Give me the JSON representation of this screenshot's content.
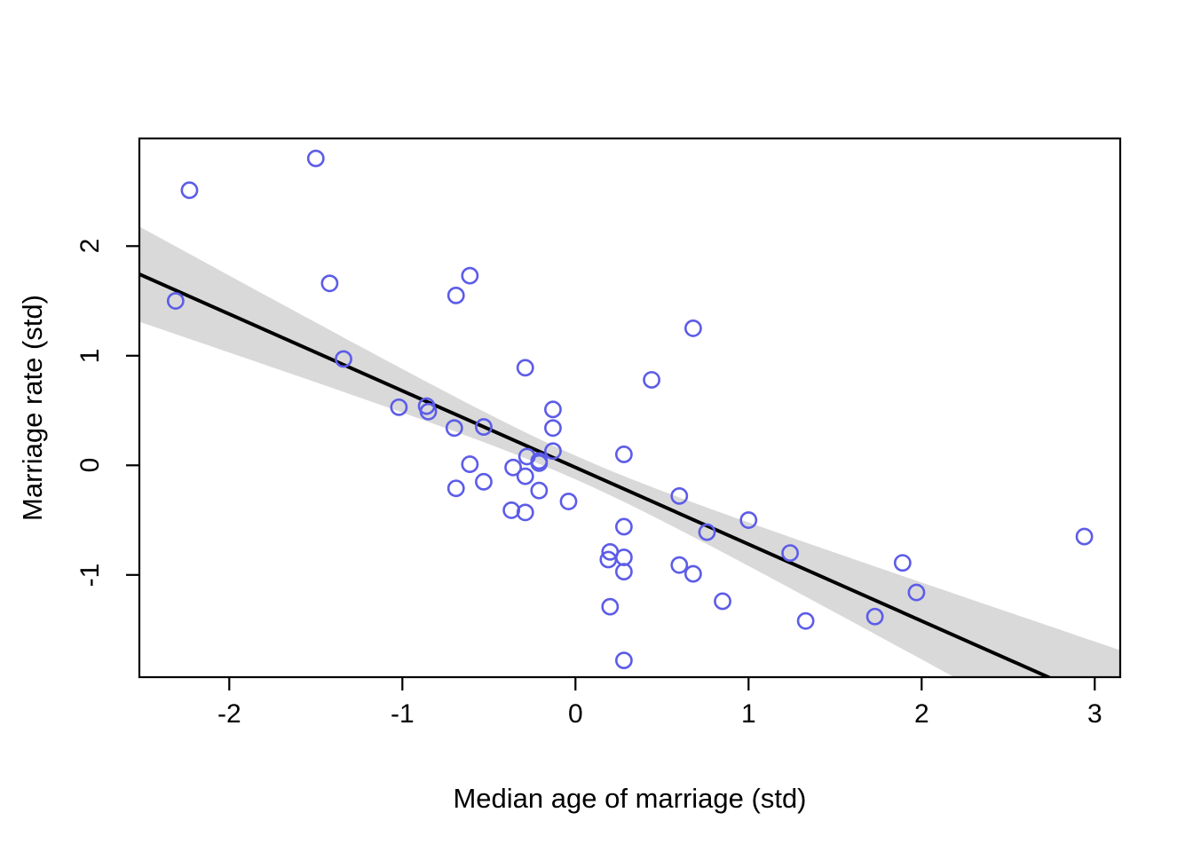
{
  "chart_data": {
    "type": "scatter",
    "title": "",
    "xlabel": "Median age of marriage (std)",
    "ylabel": "Marriage rate (std)",
    "x_ticks": [
      -2,
      -1,
      0,
      1,
      2,
      3
    ],
    "y_ticks": [
      -1,
      0,
      1,
      2
    ],
    "xlim": [
      -2.52,
      3.15
    ],
    "ylim": [
      -1.94,
      2.99
    ],
    "grid": false,
    "point_color": "#5C5CE8",
    "line_color": "#000000",
    "band_color": "rgba(0,0,0,0.15)",
    "points": [
      [
        -2.31,
        1.5
      ],
      [
        -2.23,
        2.51
      ],
      [
        -1.5,
        2.8
      ],
      [
        -1.42,
        1.66
      ],
      [
        -1.34,
        0.97
      ],
      [
        -1.02,
        0.53
      ],
      [
        -0.86,
        0.54
      ],
      [
        -0.85,
        0.49
      ],
      [
        -0.7,
        0.34
      ],
      [
        -0.69,
        1.55
      ],
      [
        -0.69,
        -0.21
      ],
      [
        -0.61,
        1.73
      ],
      [
        -0.61,
        0.01
      ],
      [
        -0.53,
        0.35
      ],
      [
        -0.53,
        -0.15
      ],
      [
        -0.37,
        -0.41
      ],
      [
        -0.36,
        -0.02
      ],
      [
        -0.29,
        0.89
      ],
      [
        -0.29,
        -0.1
      ],
      [
        -0.29,
        -0.43
      ],
      [
        -0.28,
        0.08
      ],
      [
        -0.21,
        0.04
      ],
      [
        -0.21,
        0.02
      ],
      [
        -0.21,
        -0.23
      ],
      [
        -0.13,
        0.51
      ],
      [
        -0.13,
        0.34
      ],
      [
        -0.13,
        0.13
      ],
      [
        -0.04,
        -0.33
      ],
      [
        0.19,
        -0.86
      ],
      [
        0.2,
        -0.79
      ],
      [
        0.2,
        -1.29
      ],
      [
        0.28,
        0.1
      ],
      [
        0.28,
        -0.56
      ],
      [
        0.28,
        -0.84
      ],
      [
        0.28,
        -0.97
      ],
      [
        0.28,
        -1.78
      ],
      [
        0.44,
        0.78
      ],
      [
        0.6,
        -0.28
      ],
      [
        0.6,
        -0.91
      ],
      [
        0.68,
        1.25
      ],
      [
        0.68,
        -0.99
      ],
      [
        0.76,
        -0.61
      ],
      [
        0.85,
        -1.24
      ],
      [
        1.0,
        -0.5
      ],
      [
        1.24,
        -0.8
      ],
      [
        1.33,
        -1.42
      ],
      [
        1.73,
        -1.38
      ],
      [
        1.89,
        -0.89
      ],
      [
        1.97,
        -1.16
      ],
      [
        2.94,
        -0.65
      ]
    ],
    "regression": {
      "intercept": -0.02,
      "slope": -0.7
    },
    "ci_band": {
      "h0": 0.108,
      "k": 0.167
    }
  }
}
